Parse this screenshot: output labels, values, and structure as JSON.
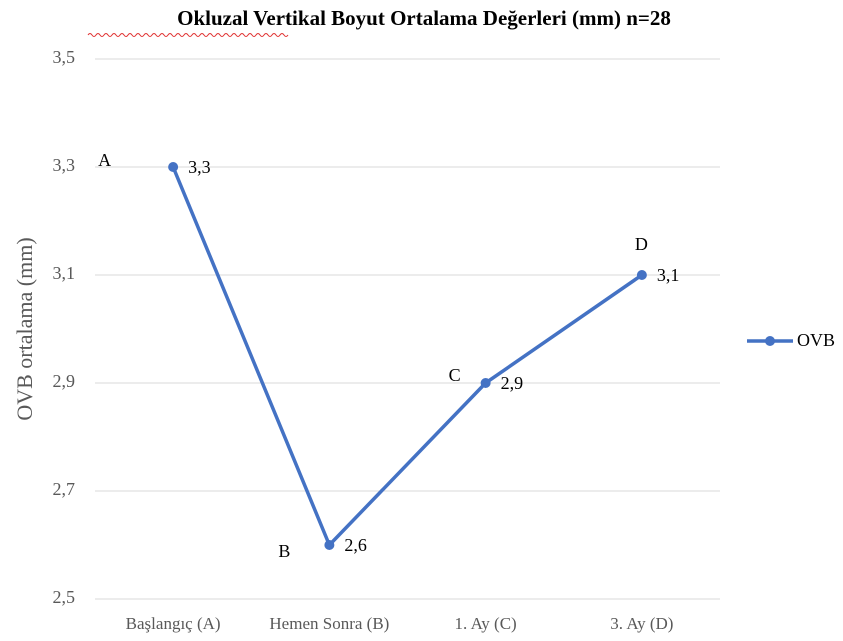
{
  "chart_data": {
    "type": "line",
    "title": "Okluzal Vertikal Boyut Ortalama Değerleri (mm) n=28",
    "y_label": "OVB ortalama (mm)",
    "categories": [
      "Başlangıç (A)",
      "Hemen Sonra (B)",
      "1. Ay (C)",
      "3. Ay (D)"
    ],
    "series": [
      {
        "name": "OVB",
        "color": "#4472c4",
        "values": [
          3.3,
          2.6,
          2.9,
          3.1
        ],
        "value_labels": [
          "3,3",
          "2,6",
          "2,9",
          "3,1"
        ]
      }
    ],
    "annotations": [
      "A",
      "B",
      "C",
      "D"
    ],
    "ylim": [
      2.5,
      3.5
    ],
    "yticks": [
      {
        "value": 2.5,
        "label": "2,5"
      },
      {
        "value": 2.7,
        "label": "2,7"
      },
      {
        "value": 2.9,
        "label": "2,9"
      },
      {
        "value": 3.1,
        "label": "3,1"
      },
      {
        "value": 3.3,
        "label": "3,3"
      },
      {
        "value": 3.5,
        "label": "3,5"
      }
    ],
    "grid": true,
    "legend": "right"
  }
}
